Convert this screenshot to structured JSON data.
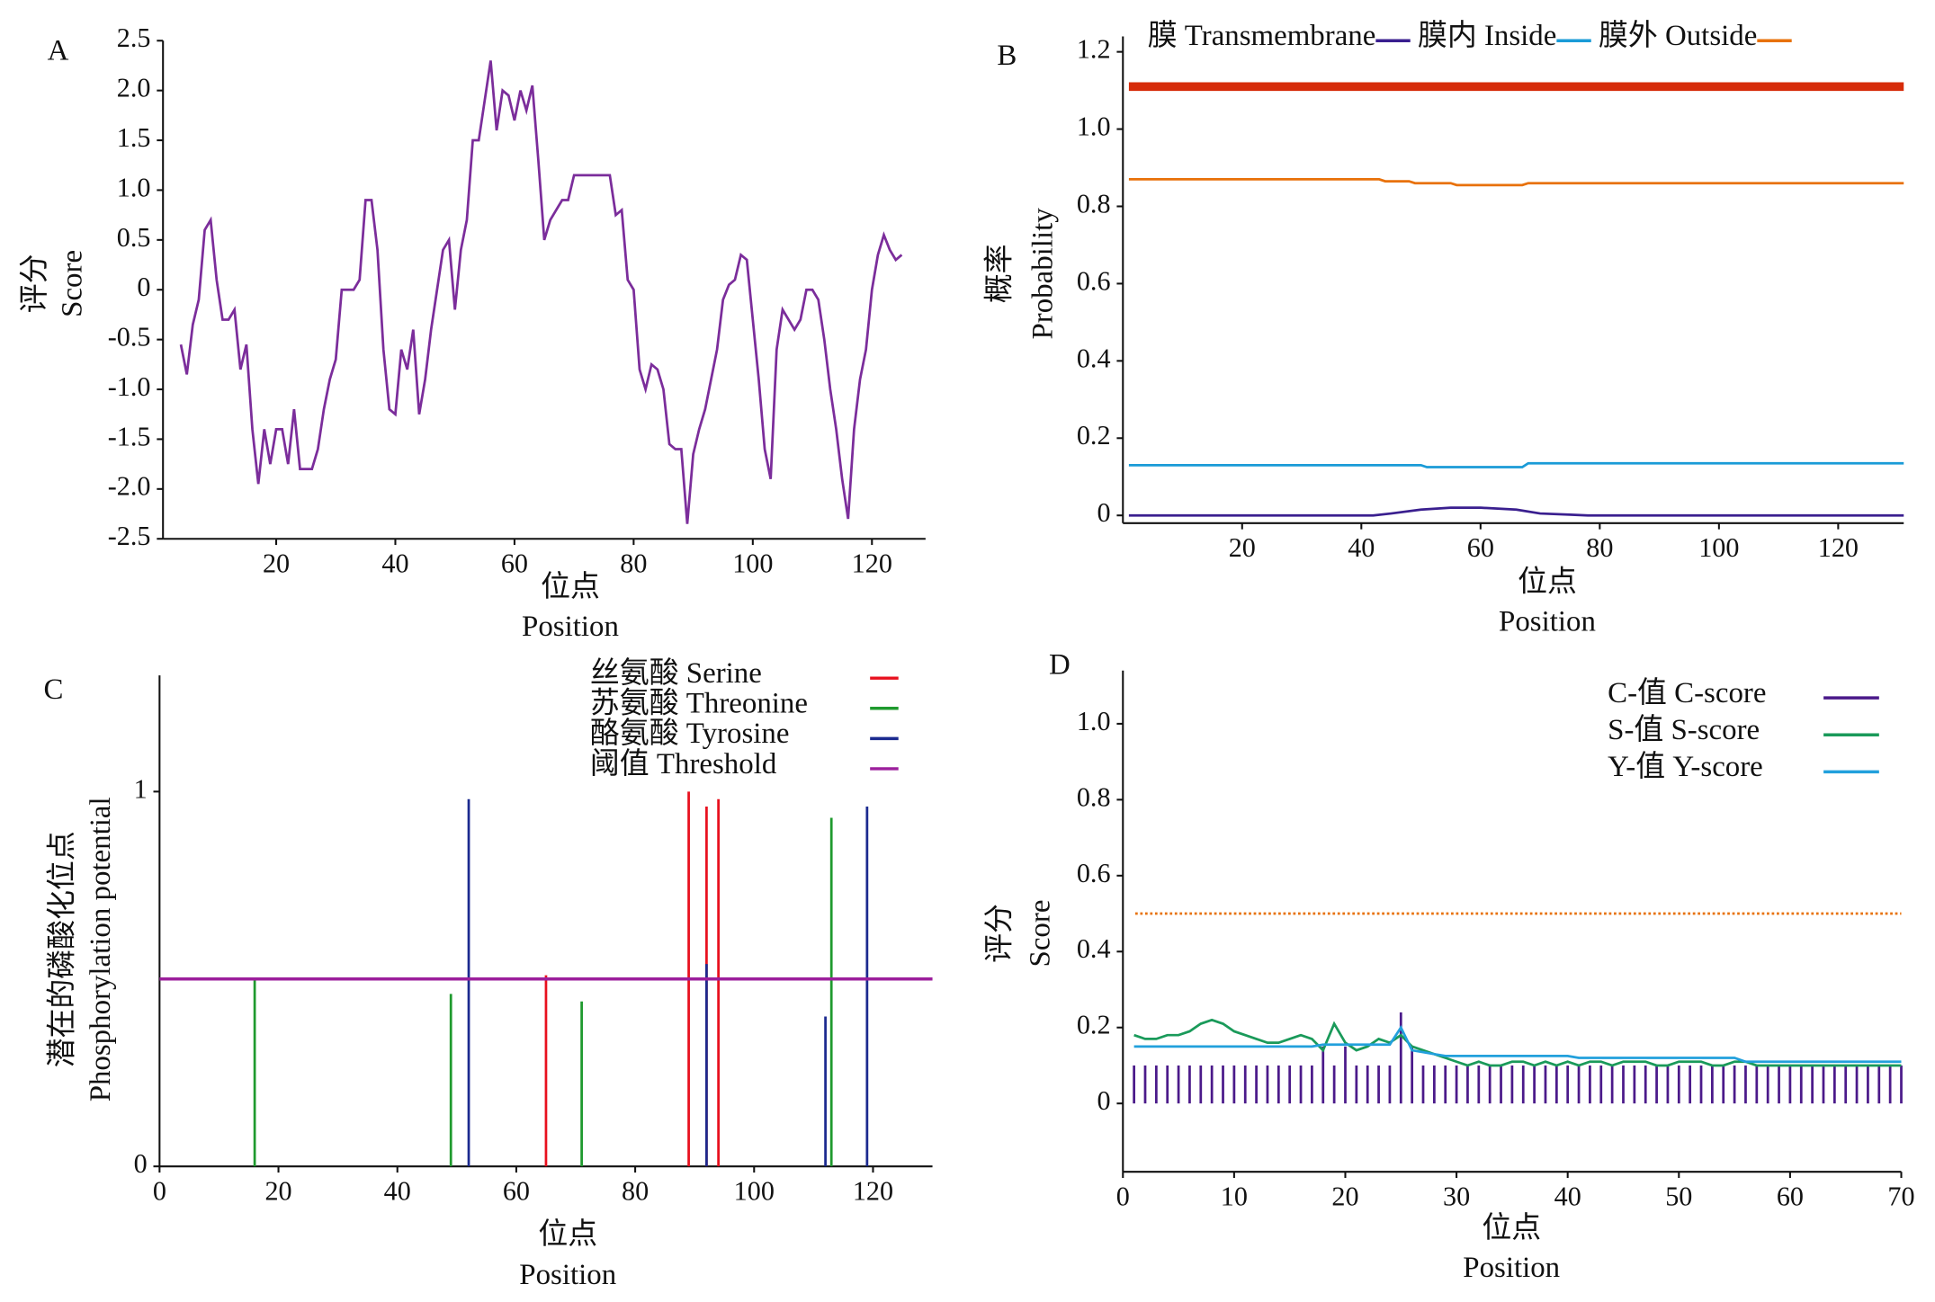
{
  "chart_data": [
    {
      "type": "line",
      "label": "A",
      "xlabel": {
        "zh": "位点",
        "en": "Position"
      },
      "ylabel": {
        "zh": "评分",
        "en": "Score"
      },
      "xlim": [
        1,
        129
      ],
      "ylim": [
        -2.5,
        2.5
      ],
      "xticks": [
        20,
        40,
        60,
        80,
        100,
        120
      ],
      "yticks": [
        2.5,
        {
          "value": 2,
          "label": "2.0"
        },
        1.5,
        {
          "value": 1,
          "label": "1.0"
        },
        0.5,
        0,
        -0.5,
        {
          "value": -1,
          "label": "-1.0"
        },
        -1.5,
        {
          "value": -2,
          "label": "-2.0"
        },
        -2.5
      ],
      "x": [
        4,
        5,
        6,
        7,
        8,
        9,
        10,
        11,
        12,
        13,
        14,
        15,
        16,
        17,
        18,
        19,
        20,
        21,
        22,
        23,
        24,
        25,
        26,
        27,
        28,
        29,
        30,
        31,
        32,
        33,
        34,
        35,
        36,
        37,
        38,
        39,
        40,
        41,
        42,
        43,
        44,
        45,
        46,
        47,
        48,
        49,
        50,
        51,
        52,
        53,
        54,
        55,
        56,
        57,
        58,
        59,
        60,
        61,
        62,
        63,
        64,
        65,
        66,
        67,
        68,
        69,
        70,
        71,
        72,
        73,
        74,
        75,
        76,
        77,
        78,
        79,
        80,
        81,
        82,
        83,
        84,
        85,
        86,
        87,
        88,
        89,
        90,
        91,
        92,
        93,
        94,
        95,
        96,
        97,
        98,
        99,
        100,
        101,
        102,
        103,
        104,
        105,
        106,
        107,
        108,
        109,
        110,
        111,
        112,
        113,
        114,
        115,
        116,
        117,
        118,
        119,
        120,
        121,
        122,
        123,
        124,
        125
      ],
      "series": [
        {
          "color": "#7b2d9b",
          "values": [
            -0.55,
            -0.85,
            -0.35,
            -0.1,
            0.6,
            0.7,
            0.1,
            -0.3,
            -0.3,
            -0.2,
            -0.8,
            -0.55,
            -1.4,
            -1.95,
            -1.4,
            -1.75,
            -1.4,
            -1.4,
            -1.75,
            -1.2,
            -1.8,
            -1.8,
            -1.8,
            -1.6,
            -1.2,
            -0.9,
            -0.7,
            0,
            0,
            0,
            0.1,
            0.9,
            0.9,
            0.4,
            -0.6,
            -1.2,
            -1.25,
            -0.6,
            -0.8,
            -0.4,
            -1.25,
            -0.9,
            -0.4,
            0,
            0.4,
            0.5,
            -0.2,
            0.4,
            0.7,
            1.5,
            1.5,
            1.9,
            2.3,
            1.6,
            2.0,
            1.95,
            1.7,
            2.0,
            1.8,
            2.05,
            1.3,
            0.5,
            0.7,
            0.8,
            0.9,
            0.9,
            1.15,
            1.15,
            1.15,
            1.15,
            1.15,
            1.15,
            1.15,
            0.75,
            0.8,
            0.1,
            0,
            -0.8,
            -1.0,
            -0.75,
            -0.8,
            -1.0,
            -1.55,
            -1.6,
            -1.6,
            -2.35,
            -1.65,
            -1.4,
            -1.2,
            -0.9,
            -0.6,
            -0.1,
            0.05,
            0.1,
            0.35,
            0.3,
            -0.3,
            -0.9,
            -1.6,
            -1.9,
            -0.6,
            -0.2,
            -0.3,
            -0.4,
            -0.3,
            0,
            0,
            -0.1,
            -0.5,
            -1.0,
            -1.4,
            -1.9,
            -2.3,
            -1.4,
            -0.9,
            -0.6,
            0,
            0.35,
            0.55,
            0.4,
            0.3,
            0.35
          ]
        }
      ]
    },
    {
      "type": "line",
      "label": "B",
      "xlabel": {
        "zh": "位点",
        "en": "Position"
      },
      "ylabel": {
        "zh": "概率",
        "en": "Probability"
      },
      "xlim": [
        0,
        131
      ],
      "ylim": [
        -0.02,
        1.24
      ],
      "xticks": [
        20,
        40,
        60,
        80,
        100,
        120
      ],
      "yticks": [
        0,
        0.2,
        0.4,
        0.6,
        0.8,
        {
          "value": 1,
          "label": "1.0"
        },
        1.2
      ],
      "legend": "top",
      "topology": {
        "x": [
          1,
          131
        ],
        "y": 1.11,
        "color": "#d62c0a"
      },
      "series": [
        {
          "name": "膜 Transmembrane",
          "color": "#3a1f8f",
          "x": [
            1,
            42,
            45,
            50,
            55,
            60,
            66,
            70,
            75,
            78,
            131
          ],
          "values": [
            0,
            0,
            0.005,
            0.015,
            0.02,
            0.02,
            0.015,
            0.005,
            0.002,
            0,
            0
          ]
        },
        {
          "name": "膜内 Inside",
          "color": "#1a9bd7",
          "x": [
            1,
            50,
            51,
            67,
            68,
            131
          ],
          "values": [
            0.13,
            0.13,
            0.125,
            0.125,
            0.135,
            0.135
          ]
        },
        {
          "name": "膜外 Outside",
          "color": "#e8710a",
          "x": [
            1,
            43,
            44,
            48,
            49,
            55,
            56,
            67,
            68,
            131
          ],
          "values": [
            0.87,
            0.87,
            0.865,
            0.865,
            0.86,
            0.86,
            0.855,
            0.855,
            0.86,
            0.86
          ]
        }
      ]
    },
    {
      "type": "stem",
      "label": "C",
      "xlabel": {
        "zh": "位点",
        "en": "Position"
      },
      "ylabel": {
        "zh": "潜在的磷酸化位点",
        "en": "Phosphorylation potential"
      },
      "xlim": [
        0,
        130
      ],
      "ylim": [
        0,
        1.31
      ],
      "xticks": [
        0,
        20,
        40,
        60,
        80,
        100,
        120
      ],
      "yticks": [
        0,
        1
      ],
      "legend": "upper right",
      "series": [
        {
          "name": "丝氨酸 Serine",
          "color": "#e8101e",
          "x": [
            65,
            89,
            92,
            94
          ],
          "values": [
            0.51,
            1.0,
            0.96,
            0.98
          ]
        },
        {
          "name": "苏氨酸 Threonine",
          "color": "#1f9a2e",
          "x": [
            16,
            49,
            71,
            113
          ],
          "values": [
            0.5,
            0.46,
            0.44,
            0.93
          ]
        },
        {
          "name": "酪氨酸 Tyrosine",
          "color": "#1b2a8f",
          "x": [
            52,
            92,
            112,
            119
          ],
          "values": [
            0.98,
            0.54,
            0.4,
            0.96
          ]
        },
        {
          "name": "阈值 Threshold",
          "color": "#9c1f9c",
          "kind": "hline",
          "values": [
            0.5
          ]
        }
      ]
    },
    {
      "type": "line",
      "label": "D",
      "xlabel": {
        "zh": "位点",
        "en": "Position"
      },
      "ylabel": {
        "zh": "评分",
        "en": "Score"
      },
      "xlim": [
        0,
        70
      ],
      "ylim": [
        -0.18,
        1.14
      ],
      "xticks": [
        0,
        10,
        20,
        30,
        40,
        50,
        60,
        70
      ],
      "yticks": [
        0,
        0.2,
        0.4,
        0.6,
        0.8,
        {
          "value": 1,
          "label": "1.0"
        }
      ],
      "legend": "upper right",
      "threshold": {
        "value": 0.5,
        "color": "#e8710a"
      },
      "x": [
        1,
        2,
        3,
        4,
        5,
        6,
        7,
        8,
        9,
        10,
        11,
        12,
        13,
        14,
        15,
        16,
        17,
        18,
        19,
        20,
        21,
        22,
        23,
        24,
        25,
        26,
        27,
        28,
        29,
        30,
        31,
        32,
        33,
        34,
        35,
        36,
        37,
        38,
        39,
        40,
        41,
        42,
        43,
        44,
        45,
        46,
        47,
        48,
        49,
        50,
        51,
        52,
        53,
        54,
        55,
        56,
        57,
        58,
        59,
        60,
        61,
        62,
        63,
        64,
        65,
        66,
        67,
        68,
        69,
        70
      ],
      "series": [
        {
          "name": "C-值 C-score",
          "color": "#4b1a8a",
          "kind": "stem",
          "values": [
            0.1,
            0.1,
            0.1,
            0.1,
            0.1,
            0.1,
            0.1,
            0.1,
            0.1,
            0.1,
            0.1,
            0.1,
            0.1,
            0.1,
            0.1,
            0.1,
            0.1,
            0.15,
            0.1,
            0.15,
            0.1,
            0.1,
            0.1,
            0.1,
            0.24,
            0.15,
            0.1,
            0.1,
            0.1,
            0.1,
            0.1,
            0.1,
            0.1,
            0.1,
            0.1,
            0.1,
            0.1,
            0.1,
            0.1,
            0.1,
            0.1,
            0.1,
            0.1,
            0.1,
            0.1,
            0.1,
            0.1,
            0.1,
            0.1,
            0.1,
            0.1,
            0.1,
            0.1,
            0.1,
            0.1,
            0.1,
            0.1,
            0.1,
            0.1,
            0.1,
            0.1,
            0.1,
            0.1,
            0.1,
            0.1,
            0.1,
            0.1,
            0.1,
            0.1,
            0.1
          ]
        },
        {
          "name": "S-值 S-score",
          "color": "#1a9a5a",
          "values": [
            0.18,
            0.17,
            0.17,
            0.18,
            0.18,
            0.19,
            0.21,
            0.22,
            0.21,
            0.19,
            0.18,
            0.17,
            0.16,
            0.16,
            0.17,
            0.18,
            0.17,
            0.14,
            0.21,
            0.16,
            0.14,
            0.15,
            0.17,
            0.16,
            0.18,
            0.15,
            0.14,
            0.13,
            0.12,
            0.11,
            0.1,
            0.11,
            0.1,
            0.1,
            0.11,
            0.11,
            0.1,
            0.11,
            0.1,
            0.11,
            0.1,
            0.11,
            0.11,
            0.1,
            0.11,
            0.11,
            0.11,
            0.1,
            0.1,
            0.11,
            0.11,
            0.11,
            0.1,
            0.1,
            0.11,
            0.11,
            0.1,
            0.1,
            0.1,
            0.1,
            0.1,
            0.1,
            0.1,
            0.1,
            0.1,
            0.1,
            0.1,
            0.1,
            0.1,
            0.1
          ]
        },
        {
          "name": "Y-值 Y-score",
          "color": "#22a0dc",
          "values": [
            0.15,
            0.15,
            0.15,
            0.15,
            0.15,
            0.15,
            0.15,
            0.15,
            0.15,
            0.15,
            0.15,
            0.15,
            0.15,
            0.15,
            0.15,
            0.15,
            0.15,
            0.155,
            0.155,
            0.155,
            0.155,
            0.155,
            0.155,
            0.155,
            0.2,
            0.14,
            0.135,
            0.13,
            0.125,
            0.125,
            0.125,
            0.125,
            0.125,
            0.125,
            0.125,
            0.125,
            0.125,
            0.125,
            0.125,
            0.125,
            0.12,
            0.12,
            0.12,
            0.12,
            0.12,
            0.12,
            0.12,
            0.12,
            0.12,
            0.12,
            0.12,
            0.12,
            0.12,
            0.12,
            0.12,
            0.11,
            0.11,
            0.11,
            0.11,
            0.11,
            0.11,
            0.11,
            0.11,
            0.11,
            0.11,
            0.11,
            0.11,
            0.11,
            0.11,
            0.11
          ]
        }
      ]
    }
  ]
}
